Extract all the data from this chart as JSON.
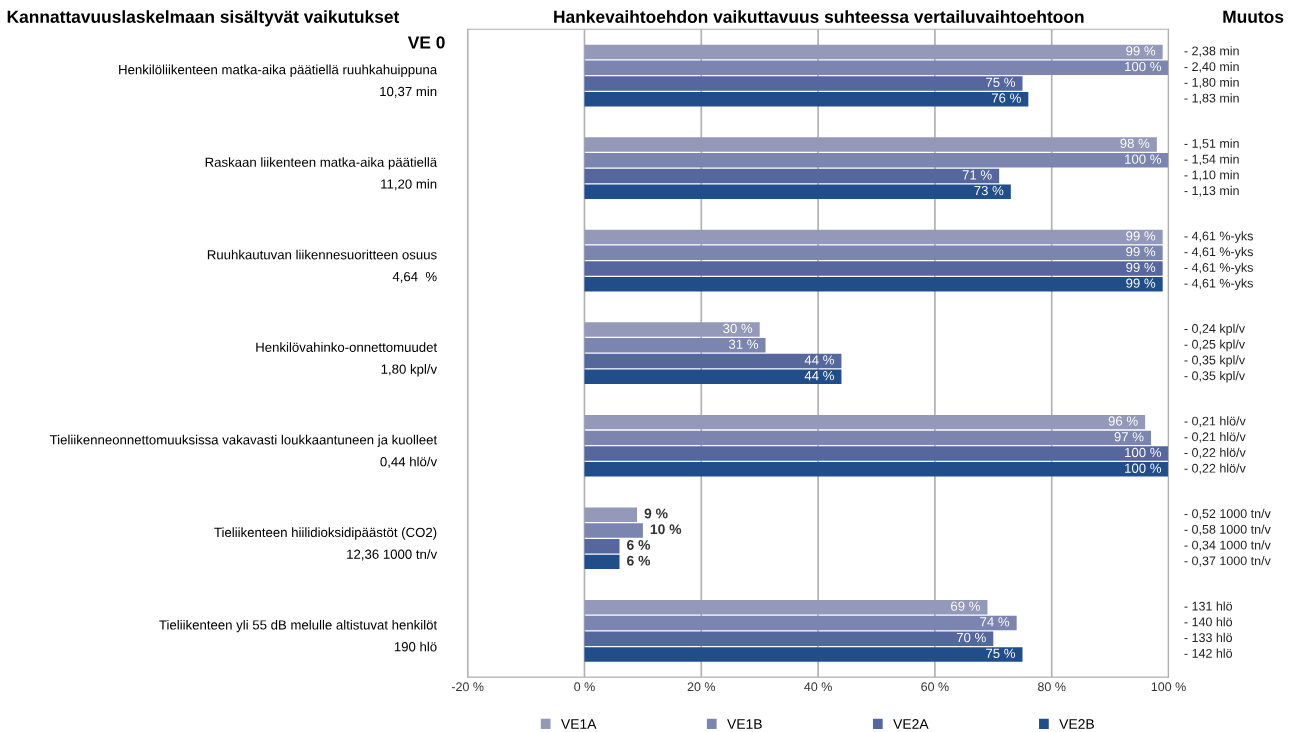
{
  "chart_data": {
    "type": "bar",
    "orientation": "horizontal",
    "title": "Hankevaihtoehdon vaikuttavuus suhteessa vertailuvaihtoehtoon",
    "ylabel": "Kannattavuuslaskelmaan sisältyvät vaikutukset",
    "categories": [
      "Henkilöliikenteen matka-aika päätiellä ruuhkahuippuna\n10,37 min",
      "Raskaan liikenteen matka-aika päätiellä\n11,20 min",
      "Ruuhkautuvan liikennesuoritteen osuus\n4,64  %",
      "Henkilövahinko-onnettomuudet\n1,80 kpl/v",
      "Tieliikenneonnettomuuksissa vakavasti loukkaantuneen ja kuolleet\n0,44 hlö/v",
      "Tieliikenteen hiilidioksidipäästöt (CO2)\n12,36 1000 tn/v",
      "Tieliikenteen yli 55 dB melulle altistuvat henkilöt\n190 hlö"
    ],
    "series": [
      {
        "name": "VE1A",
        "color": "#9499b9",
        "values": [
          99,
          98,
          99,
          30,
          96,
          9,
          69
        ],
        "value_labels": [
          "99 %",
          "98 %",
          "99 %",
          "30 %",
          "96 %",
          "9 %",
          "69 %"
        ]
      },
      {
        "name": "VE1B",
        "color": "#7b85b0",
        "values": [
          100,
          100,
          99,
          31,
          97,
          10,
          74
        ],
        "value_labels": [
          "100 %",
          "100 %",
          "99 %",
          "31 %",
          "97 %",
          "10 %",
          "74 %"
        ]
      },
      {
        "name": "VE2A",
        "color": "#56679e",
        "values": [
          75,
          71,
          99,
          44,
          100,
          6,
          70
        ],
        "value_labels": [
          "75 %",
          "71 %",
          "99 %",
          "44 %",
          "100 %",
          "6 %",
          "70 %"
        ]
      },
      {
        "name": "VE2B",
        "color": "#214e8a",
        "values": [
          76,
          73,
          99,
          44,
          100,
          6,
          75
        ],
        "value_labels": [
          "76 %",
          "73 %",
          "99 %",
          "44 %",
          "100 %",
          "6 %",
          "75 %"
        ]
      }
    ],
    "xlim": [
      -20,
      100
    ],
    "xticks": [
      {
        "value": -20,
        "label": "-20 %"
      },
      {
        "value": 0,
        "label": "0 %"
      },
      {
        "value": 20,
        "label": "20 %"
      },
      {
        "value": 40,
        "label": "40 %"
      },
      {
        "value": 60,
        "label": "60 %"
      },
      {
        "value": 80,
        "label": "80 %"
      },
      {
        "value": 100,
        "label": "100 %"
      }
    ],
    "grid": "x",
    "legend": "bottom",
    "annotations": [
      "VE 0",
      "Muutos",
      "- 2,38 min",
      "- 2,40 min",
      "- 1,80 min",
      "- 1,83 min",
      "- 1,51 min",
      "- 1,54 min",
      "- 1,10 min",
      "- 1,13 min",
      "- 4,61 %-yks",
      "- 4,61 %-yks",
      "- 4,61 %-yks",
      "- 4,61 %-yks",
      "- 0,24 kpl/v",
      "- 0,25 kpl/v",
      "- 0,35 kpl/v",
      "- 0,35 kpl/v",
      "- 0,21 hlö/v",
      "- 0,21 hlö/v",
      "- 0,22 hlö/v",
      "- 0,22 hlö/v",
      "- 0,52 1000 tn/v",
      "- 0,58 1000 tn/v",
      "- 0,34 1000 tn/v",
      "- 0,37 1000 tn/v",
      "- 131 hlö",
      "- 140 hlö",
      "- 133 hlö",
      "- 142 hlö"
    ]
  }
}
